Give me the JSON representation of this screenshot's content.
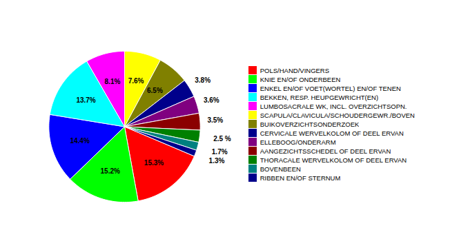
{
  "chart_data": {
    "type": "pie",
    "categories": [
      "POLS/HAND/VINGERS",
      "KNIE EN/OF ONDERBEEN",
      "ENKEL EN/OF VOET(WORTEL) EN/OF TENEN",
      "BEKKEN, RESP. HEUPGEWRICHT(EN)",
      "LUMBOSACRALE WK, INCL. OVERZICHTSOPN.",
      "SCAPULA/CLAVICULA/SCHOUDERGEWR./BOVEN",
      "BUIKOVERZICHTSONDERZOEK",
      "CERVICALE WERVELKOLOM OF DEEL ERVAN",
      "ELLEBOOG/ONDERARM",
      "AANGEZICHTSSCHEDEL OF DEEL ERVAN",
      "THORACALE WERVELKOLOM OF DEEL ERVAN",
      "BOVENBEEN",
      "RIBBEN EN/OF STERNUM"
    ],
    "values": [
      15.3,
      15.2,
      14.4,
      13.7,
      8.1,
      7.6,
      6.5,
      3.8,
      3.6,
      3.5,
      2.5,
      1.7,
      1.3
    ],
    "value_labels": [
      "15.3%",
      "15.2%",
      "14.4%",
      "13.7%",
      "8.1%",
      "7.6%",
      "6.5%",
      "3.8%",
      "3.6%",
      "3.5%",
      "2.5 %",
      "1.7%",
      "1.3%"
    ],
    "colors": [
      "#FF0000",
      "#00FF00",
      "#0000FF",
      "#00FFFF",
      "#FF00FF",
      "#FFFF00",
      "#808000",
      "#00008B",
      "#800080",
      "#8B0000",
      "#008000",
      "#008080",
      "#00008B"
    ],
    "data_labels": true,
    "legend": "right"
  }
}
